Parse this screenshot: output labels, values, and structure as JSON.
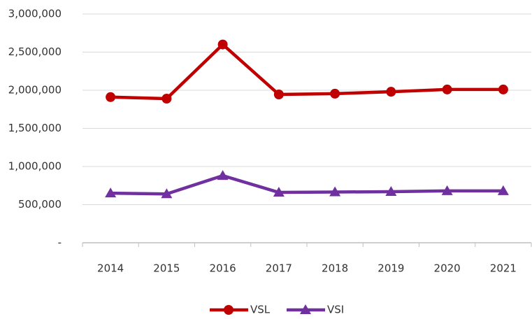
{
  "chart_data": {
    "type": "line",
    "categories": [
      "2014",
      "2015",
      "2016",
      "2017",
      "2018",
      "2019",
      "2020",
      "2021"
    ],
    "series": [
      {
        "name": "VSL",
        "color": "#c00000",
        "marker": "circle",
        "values": [
          1910000,
          1890000,
          2600000,
          1945000,
          1955000,
          1980000,
          2010000,
          2010000
        ]
      },
      {
        "name": "VSI",
        "color": "#7030a0",
        "marker": "triangle",
        "values": [
          650000,
          640000,
          880000,
          660000,
          665000,
          670000,
          680000,
          680000
        ]
      }
    ],
    "ylim": [
      0,
      3000000
    ],
    "yticks": [
      {
        "value": 0,
        "label": "-"
      },
      {
        "value": 500000,
        "label": "500,000"
      },
      {
        "value": 1000000,
        "label": "1,000,000"
      },
      {
        "value": 1500000,
        "label": "1,500,000"
      },
      {
        "value": 2000000,
        "label": "2,000,000"
      },
      {
        "value": 2500000,
        "label": "2,500,000"
      },
      {
        "value": 3000000,
        "label": "3,000,000"
      }
    ],
    "grid": true,
    "legend": "bottom"
  }
}
